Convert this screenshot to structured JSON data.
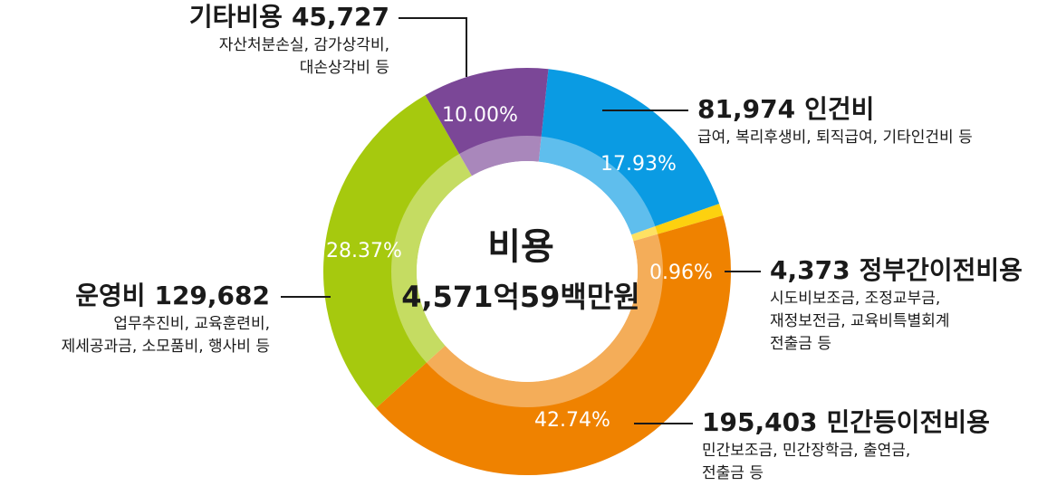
{
  "chart_data": {
    "type": "pie",
    "title": "비용",
    "subtitle": "4,571억59백만원",
    "categories": [
      "인건비",
      "정부간이전비용",
      "민간등이전비용",
      "운영비",
      "기타비용"
    ],
    "values": [
      17.93,
      0.96,
      42.74,
      28.37,
      10.0
    ],
    "value_labels": [
      "17.93%",
      "0.96%",
      "42.74%",
      "28.37%",
      "10.00%"
    ],
    "colors": [
      "#0a9be3",
      "#fdd10f",
      "#ef8200",
      "#a6c90e",
      "#7b4797"
    ],
    "amounts": [
      81974,
      4373,
      195403,
      129682,
      45727
    ],
    "amount_labels": [
      "81,974",
      "4,373",
      "195,403",
      "129,682",
      "45,727"
    ],
    "descriptions": [
      [
        "급여, 복리후생비, 퇴직급여, 기타인건비 등"
      ],
      [
        "시도비보조금, 조정교부금,",
        "재정보전금, 교육비특별회계",
        "전출금 등"
      ],
      [
        "민간보조금, 민간장학금, 출연금,",
        "전출금 등"
      ],
      [
        "업무추진비, 교육훈련비,",
        "제세공과금, 소모품비, 행사비 등"
      ],
      [
        "자산처분손실, 감가상각비,",
        "대손상각비 등"
      ]
    ]
  }
}
